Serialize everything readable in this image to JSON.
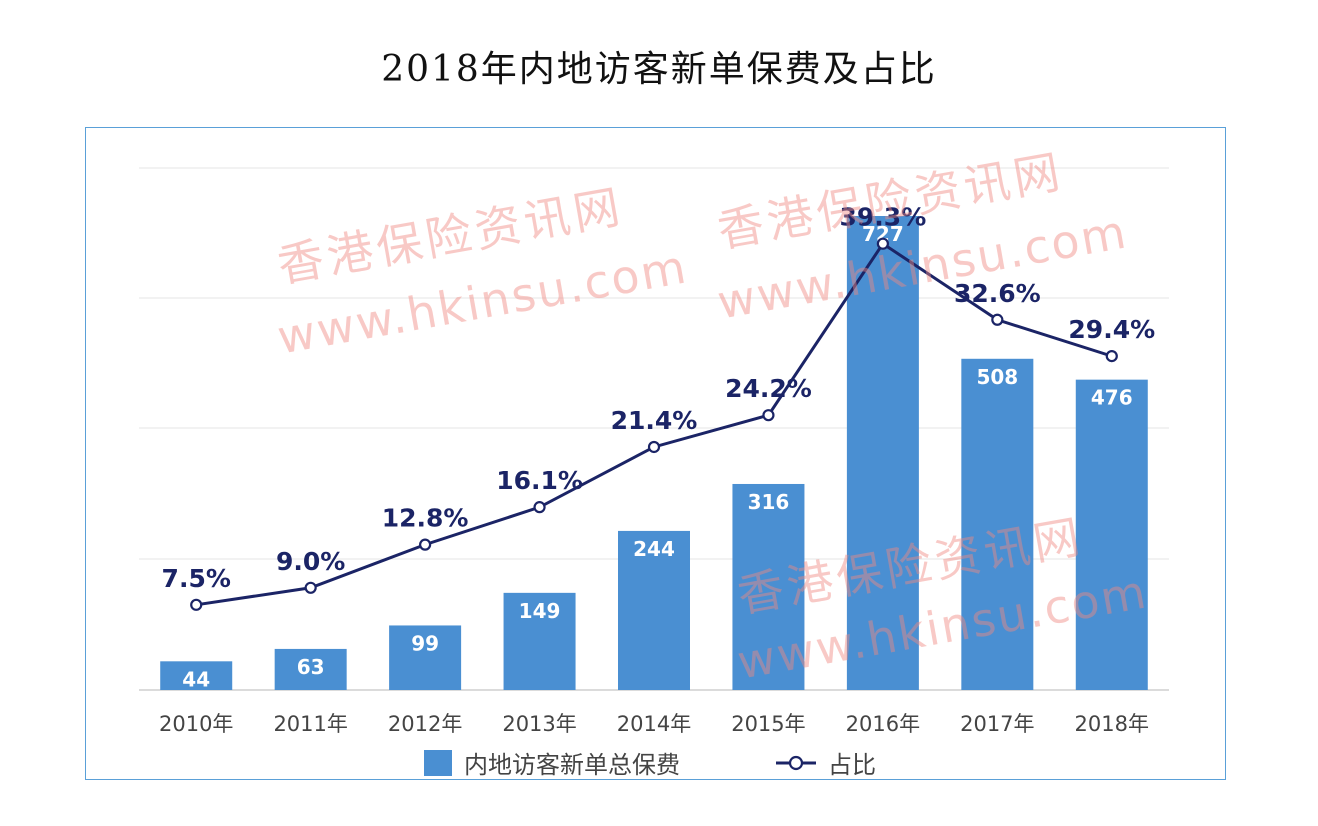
{
  "chart_data": {
    "type": "bar+line",
    "title": "2018年内地访客新单保费及占比",
    "categories": [
      "2010年",
      "2011年",
      "2012年",
      "2013年",
      "2014年",
      "2015年",
      "2016年",
      "2017年",
      "2018年"
    ],
    "series": [
      {
        "name": "内地访客新单总保费",
        "type": "bar",
        "values": [
          44,
          63,
          99,
          149,
          244,
          316,
          727,
          508,
          476
        ],
        "data_labels": [
          "44",
          "63",
          "99",
          "149",
          "244",
          "316",
          "727",
          "508",
          "476"
        ],
        "color": "#4a8fd2"
      },
      {
        "name": "占比",
        "type": "line",
        "values": [
          7.5,
          9.0,
          12.8,
          16.1,
          21.4,
          24.2,
          39.3,
          32.6,
          29.4
        ],
        "data_labels": [
          "7.5%",
          "9.0%",
          "12.8%",
          "16.1%",
          "21.4%",
          "24.2%",
          "39.3%",
          "32.6%",
          "29.4%"
        ],
        "color": "#1b2466"
      }
    ],
    "bar_ylim": [
      0,
      800
    ],
    "line_ylim": [
      0,
      42
    ],
    "grid": true,
    "legend_position": "bottom"
  },
  "watermarks": {
    "cn": "香港保险资讯网",
    "url": "www.hkinsu.com"
  }
}
